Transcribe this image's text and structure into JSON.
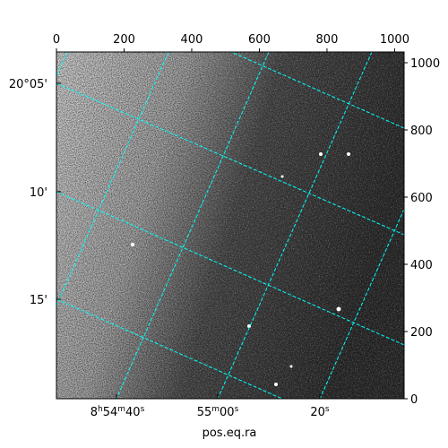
{
  "chart_data": {
    "type": "image",
    "xlabel": "pos.eq.ra",
    "xlim": [
      0,
      1028
    ],
    "xticks": [
      0,
      200,
      400,
      600,
      800,
      1000
    ],
    "ylim": [
      0,
      1032
    ],
    "yticks": [
      0,
      200,
      400,
      600,
      800,
      1000
    ],
    "dec_labels": [
      "20°05'",
      "10'",
      "15'"
    ],
    "ra_labels": [
      [
        "8",
        "h",
        "54",
        "m",
        "40",
        "s"
      ],
      [
        "55",
        "m",
        "00",
        "s"
      ],
      [
        "20",
        "s"
      ]
    ],
    "grid_color": "#00ffff"
  }
}
